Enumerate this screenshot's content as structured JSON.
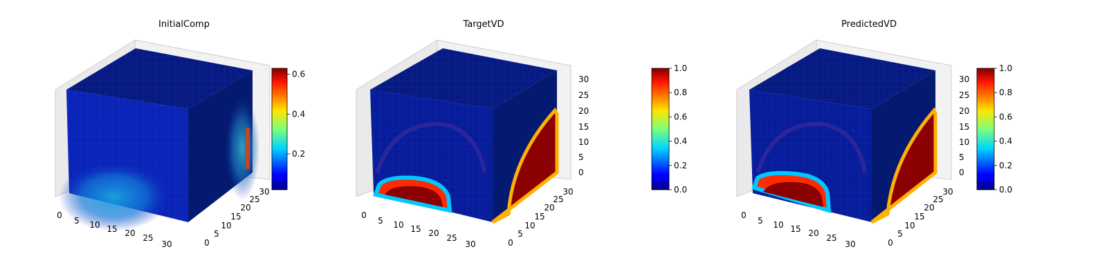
{
  "chart_data": [
    {
      "type": "voxel-3d",
      "title": "InitialComp",
      "x_ticks": [
        "0",
        "5",
        "10",
        "15",
        "20",
        "25",
        "30"
      ],
      "y_ticks": [
        "0",
        "5",
        "10",
        "15",
        "20",
        "25",
        "30"
      ],
      "z_ticks": [],
      "colorbar": {
        "colormap": "jet",
        "range": [
          0.02,
          0.63
        ],
        "ticks": [
          "0.2",
          "0.4",
          "0.6"
        ],
        "tick_values": [
          0.2,
          0.4,
          0.6
        ]
      }
    },
    {
      "type": "voxel-3d",
      "title": "TargetVD",
      "x_ticks": [
        "0",
        "5",
        "10",
        "15",
        "20",
        "25",
        "30"
      ],
      "y_ticks": [
        "0",
        "5",
        "10",
        "15",
        "20",
        "25",
        "30"
      ],
      "z_ticks": [
        "0",
        "5",
        "10",
        "15",
        "20",
        "25",
        "30"
      ],
      "colorbar": {
        "colormap": "jet",
        "range": [
          0.0,
          1.0
        ],
        "ticks": [
          "0.0",
          "0.2",
          "0.4",
          "0.6",
          "0.8",
          "1.0"
        ],
        "tick_values": [
          0,
          0.2,
          0.4,
          0.6,
          0.8,
          1.0
        ]
      }
    },
    {
      "type": "voxel-3d",
      "title": "PredictedVD",
      "x_ticks": [
        "0",
        "5",
        "10",
        "15",
        "20",
        "25",
        "30"
      ],
      "y_ticks": [
        "0",
        "5",
        "10",
        "15",
        "20",
        "25",
        "30"
      ],
      "z_ticks": [
        "0",
        "5",
        "10",
        "15",
        "20",
        "25",
        "30"
      ],
      "colorbar": {
        "colormap": "jet",
        "range": [
          0.0,
          1.0
        ],
        "ticks": [
          "0.0",
          "0.2",
          "0.4",
          "0.6",
          "0.8",
          "1.0"
        ],
        "tick_values": [
          0,
          0.2,
          0.4,
          0.6,
          0.8,
          1.0
        ]
      }
    }
  ]
}
